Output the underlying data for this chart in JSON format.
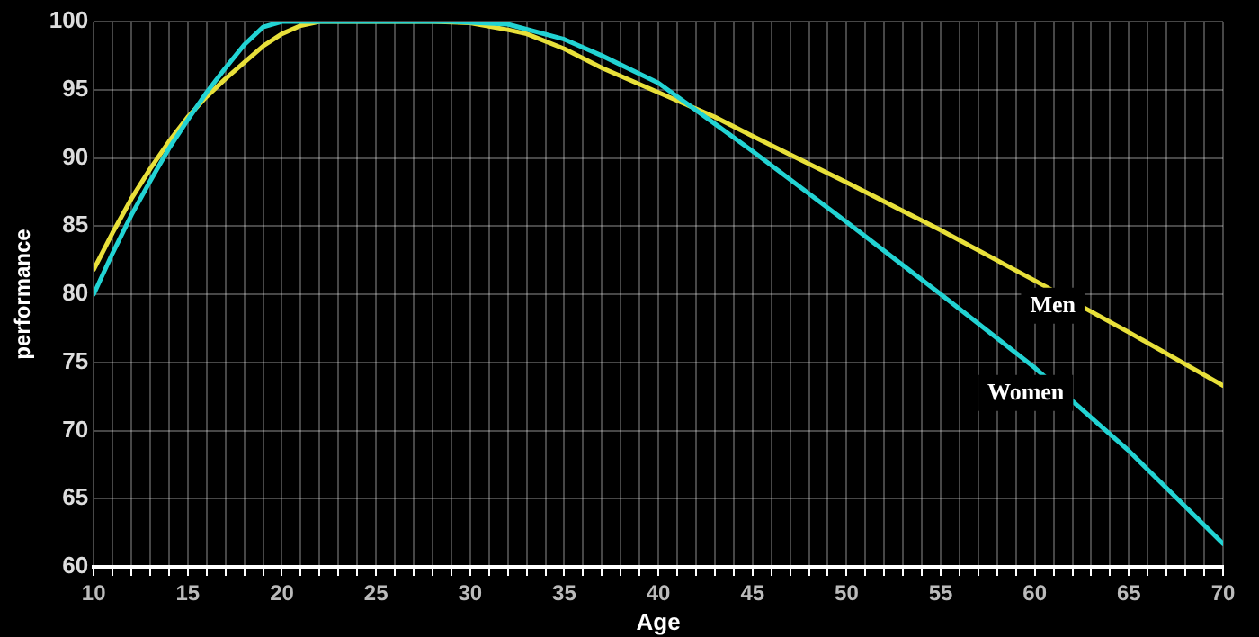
{
  "chart_data": {
    "type": "line",
    "xlabel": "Age",
    "ylabel": "performance",
    "xlim": [
      10,
      70
    ],
    "ylim": [
      60,
      100
    ],
    "xticks": [
      10,
      {
        "value": 11,
        "label": null
      },
      {
        "value": 12,
        "label": null
      },
      {
        "value": 13,
        "label": null
      },
      {
        "value": 14,
        "label": null
      },
      15,
      {
        "value": 16,
        "label": null
      },
      {
        "value": 17,
        "label": null
      },
      {
        "value": 18,
        "label": null
      },
      {
        "value": 19,
        "label": null
      },
      20,
      {
        "value": 21,
        "label": null
      },
      {
        "value": 22,
        "label": null
      },
      {
        "value": 23,
        "label": null
      },
      {
        "value": 24,
        "label": null
      },
      25,
      {
        "value": 26,
        "label": null
      },
      {
        "value": 27,
        "label": null
      },
      {
        "value": 28,
        "label": null
      },
      {
        "value": 29,
        "label": null
      },
      30,
      {
        "value": 31,
        "label": null
      },
      {
        "value": 32,
        "label": null
      },
      {
        "value": 33,
        "label": null
      },
      {
        "value": 34,
        "label": null
      },
      35,
      {
        "value": 36,
        "label": null
      },
      {
        "value": 37,
        "label": null
      },
      {
        "value": 38,
        "label": null
      },
      {
        "value": 39,
        "label": null
      },
      40,
      {
        "value": 41,
        "label": null
      },
      {
        "value": 42,
        "label": null
      },
      {
        "value": 43,
        "label": null
      },
      {
        "value": 44,
        "label": null
      },
      45,
      {
        "value": 46,
        "label": null
      },
      {
        "value": 47,
        "label": null
      },
      {
        "value": 48,
        "label": null
      },
      {
        "value": 49,
        "label": null
      },
      50,
      {
        "value": 51,
        "label": null
      },
      {
        "value": 52,
        "label": null
      },
      {
        "value": 53,
        "label": null
      },
      {
        "value": 54,
        "label": null
      },
      55,
      {
        "value": 56,
        "label": null
      },
      {
        "value": 57,
        "label": null
      },
      {
        "value": 58,
        "label": null
      },
      {
        "value": 59,
        "label": null
      },
      60,
      {
        "value": 61,
        "label": null
      },
      {
        "value": 62,
        "label": null
      },
      {
        "value": 63,
        "label": null
      },
      {
        "value": 64,
        "label": null
      },
      65,
      {
        "value": 66,
        "label": null
      },
      {
        "value": 67,
        "label": null
      },
      {
        "value": 68,
        "label": null
      },
      {
        "value": 69,
        "label": null
      },
      70
    ],
    "yticks": [
      60,
      65,
      70,
      75,
      80,
      85,
      90,
      95,
      100
    ],
    "grid": true,
    "legend": false,
    "marker": "none",
    "line_style": "solid",
    "series": [
      {
        "name": "Men",
        "color": "#e8e03a",
        "x": [
          10,
          11,
          12,
          13,
          14,
          15,
          16,
          17,
          18,
          19,
          20,
          21,
          22,
          28,
          30,
          32,
          33,
          35,
          37,
          40,
          43,
          45,
          50,
          55,
          60,
          65,
          70
        ],
        "values": [
          81.8,
          84.5,
          87,
          89.2,
          91.2,
          93,
          94.5,
          95.8,
          97,
          98.2,
          99.1,
          99.7,
          100,
          100,
          99.9,
          99.4,
          99.1,
          98,
          96.6,
          94.8,
          93,
          91.6,
          88.2,
          84.7,
          81,
          77.2,
          73.3
        ]
      },
      {
        "name": "Women",
        "color": "#22d3d3",
        "x": [
          10,
          11,
          12,
          13,
          14,
          15,
          16,
          17,
          18,
          19,
          20,
          29,
          32,
          35,
          37,
          40,
          42,
          43,
          45,
          50,
          55,
          60,
          65,
          70
        ],
        "values": [
          80,
          83,
          85.8,
          88.3,
          90.7,
          92.8,
          94.8,
          96.6,
          98.3,
          99.6,
          100,
          100,
          99.8,
          98.7,
          97.5,
          95.5,
          93.5,
          92.5,
          90.5,
          85.3,
          80,
          74.6,
          68.5,
          61.7
        ]
      }
    ]
  }
}
